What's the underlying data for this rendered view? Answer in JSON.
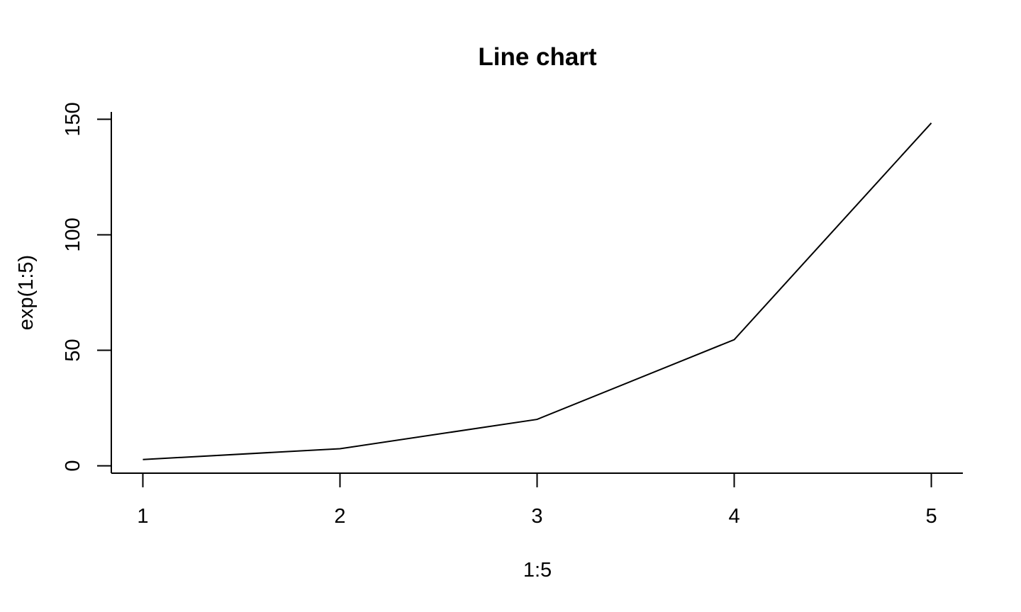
{
  "chart_data": {
    "type": "line",
    "title": "Line chart",
    "xlabel": "1:5",
    "ylabel": "exp(1:5)",
    "x": [
      1,
      2,
      3,
      4,
      5
    ],
    "series": [
      {
        "values": [
          2.718,
          7.389,
          20.09,
          54.6,
          148.4
        ]
      }
    ],
    "xlim": [
      0.84,
      5.16
    ],
    "ylim": [
      -3.2,
      153.2
    ],
    "x_ticks": [
      "1",
      "2",
      "3",
      "4",
      "5"
    ],
    "y_ticks": [
      "0",
      "50",
      "100",
      "150"
    ],
    "grid": false,
    "legend": "none",
    "colors": {
      "line": "#000000",
      "background": "#ffffff"
    }
  }
}
